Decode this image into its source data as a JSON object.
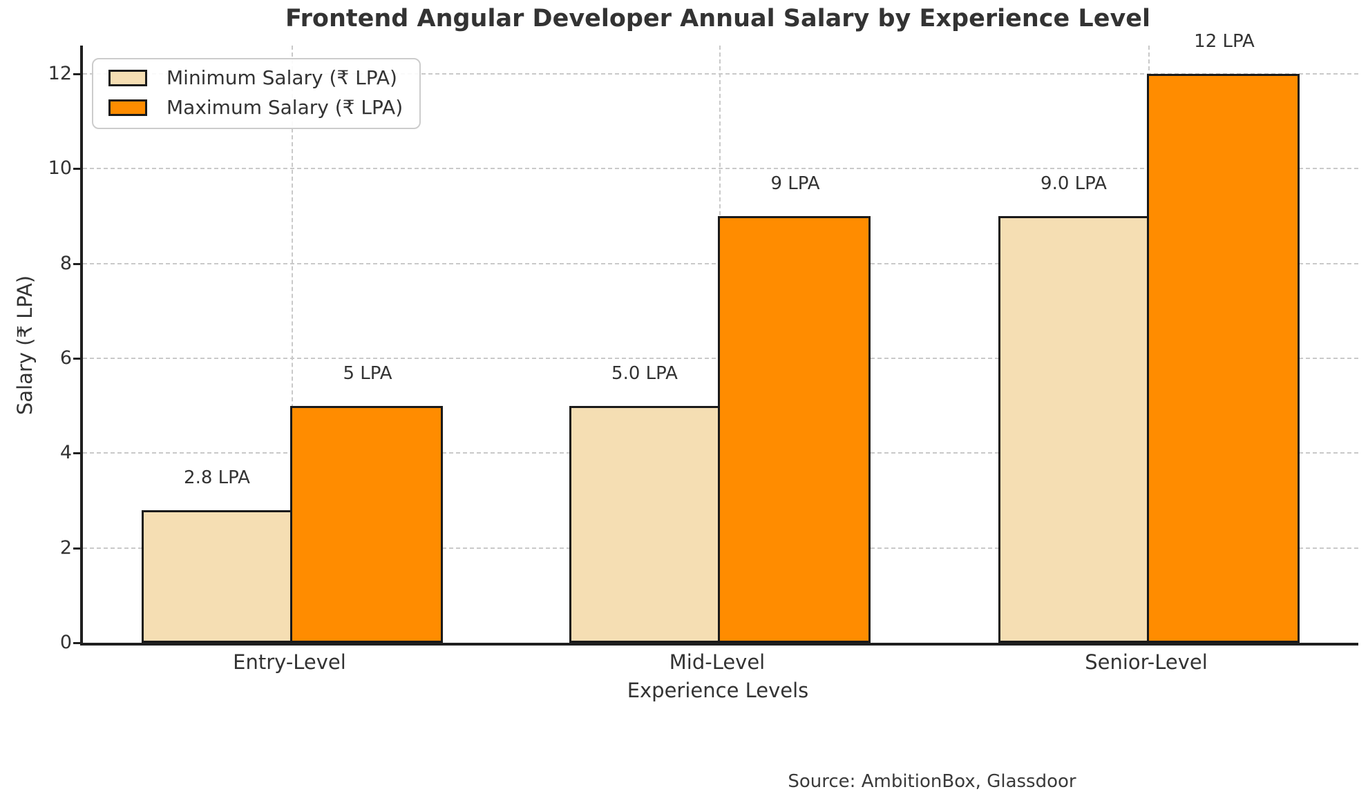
{
  "figure": {
    "title": "Frontend Angular Developer Annual Salary by Experience Level",
    "source_note": "Source: AmbitionBox, Glassdoor"
  },
  "colors": {
    "background": "#ffffff",
    "min_bar_fill": "#F5DEB3",
    "max_bar_fill": "#FF8C00",
    "bar_edge": "#1a1a1a",
    "grid": "#c9c9c9",
    "spine": "#1f1f1f",
    "text": "#333333",
    "legend_border": "#cccccc"
  },
  "chart_data": {
    "type": "bar",
    "title": "Frontend Angular Developer Annual Salary by Experience Level",
    "categories": [
      "Entry-Level",
      "Mid-Level",
      "Senior-Level"
    ],
    "series": [
      {
        "name": "Minimum Salary (₹ LPA)",
        "color": "#F5DEB3",
        "values": [
          2.8,
          5.0,
          9.0
        ],
        "data_labels": [
          "2.8 LPA",
          "5.0 LPA",
          "9.0 LPA"
        ]
      },
      {
        "name": "Maximum Salary (₹ LPA)",
        "color": "#FF8C00",
        "values": [
          5,
          9,
          12
        ],
        "data_labels": [
          "5 LPA",
          "9 LPA",
          "12 LPA"
        ]
      }
    ],
    "xlabel": "Experience Levels",
    "ylabel": "Salary (₹ LPA)",
    "ylim": [
      0,
      12.6
    ],
    "yticks": [
      0,
      2,
      4,
      6,
      8,
      10,
      12
    ],
    "grid": "dashed horizontal and vertical gridlines",
    "legend_position": "upper left",
    "source": "Source: AmbitionBox, Glassdoor"
  }
}
